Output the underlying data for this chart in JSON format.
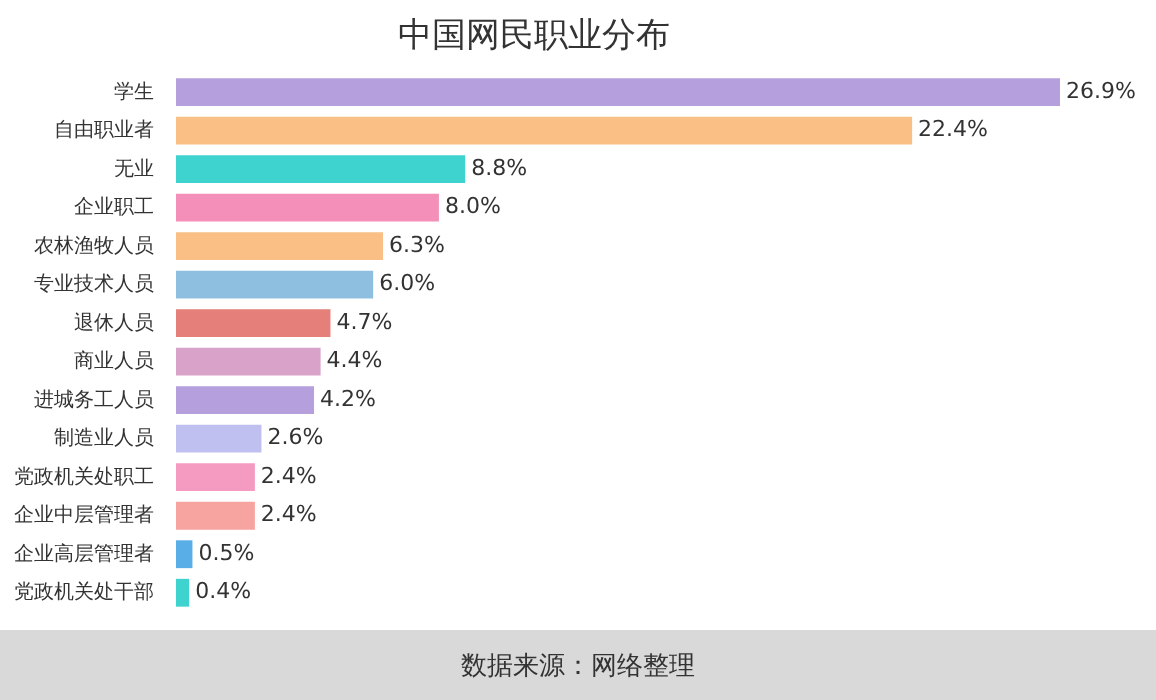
{
  "chart_data": {
    "type": "bar",
    "orientation": "horizontal",
    "title": "中国网民职业分布",
    "categories": [
      "学生",
      "自由职业者",
      "无业",
      "企业职工",
      "农林渔牧人员",
      "专业技术人员",
      "退休人员",
      "商业人员",
      "进城务工人员",
      "制造业人员",
      "党政机关处职工",
      "企业中层管理者",
      "企业高层管理者",
      "党政机关处干部"
    ],
    "values": [
      26.9,
      22.4,
      8.8,
      8.0,
      6.3,
      6.0,
      4.7,
      4.4,
      4.2,
      2.6,
      2.4,
      2.4,
      0.5,
      0.4
    ],
    "value_labels": [
      "26.9%",
      "22.4%",
      "8.8%",
      "8.0%",
      "6.3%",
      "6.0%",
      "4.7%",
      "4.4%",
      "4.2%",
      "2.6%",
      "2.4%",
      "2.4%",
      "0.5%",
      "0.4%"
    ],
    "colors": [
      "#b59fdd",
      "#f9bf85",
      "#3fd3cf",
      "#f38fb8",
      "#f9bf85",
      "#8fbfe0",
      "#e57f7a",
      "#d9a3c9",
      "#b59fdd",
      "#c0c0f0",
      "#f59ac0",
      "#f7a3a0",
      "#5aaee8",
      "#3fd3cf"
    ],
    "legend": false,
    "annotations": [
      "数据来源：网络整理"
    ]
  }
}
